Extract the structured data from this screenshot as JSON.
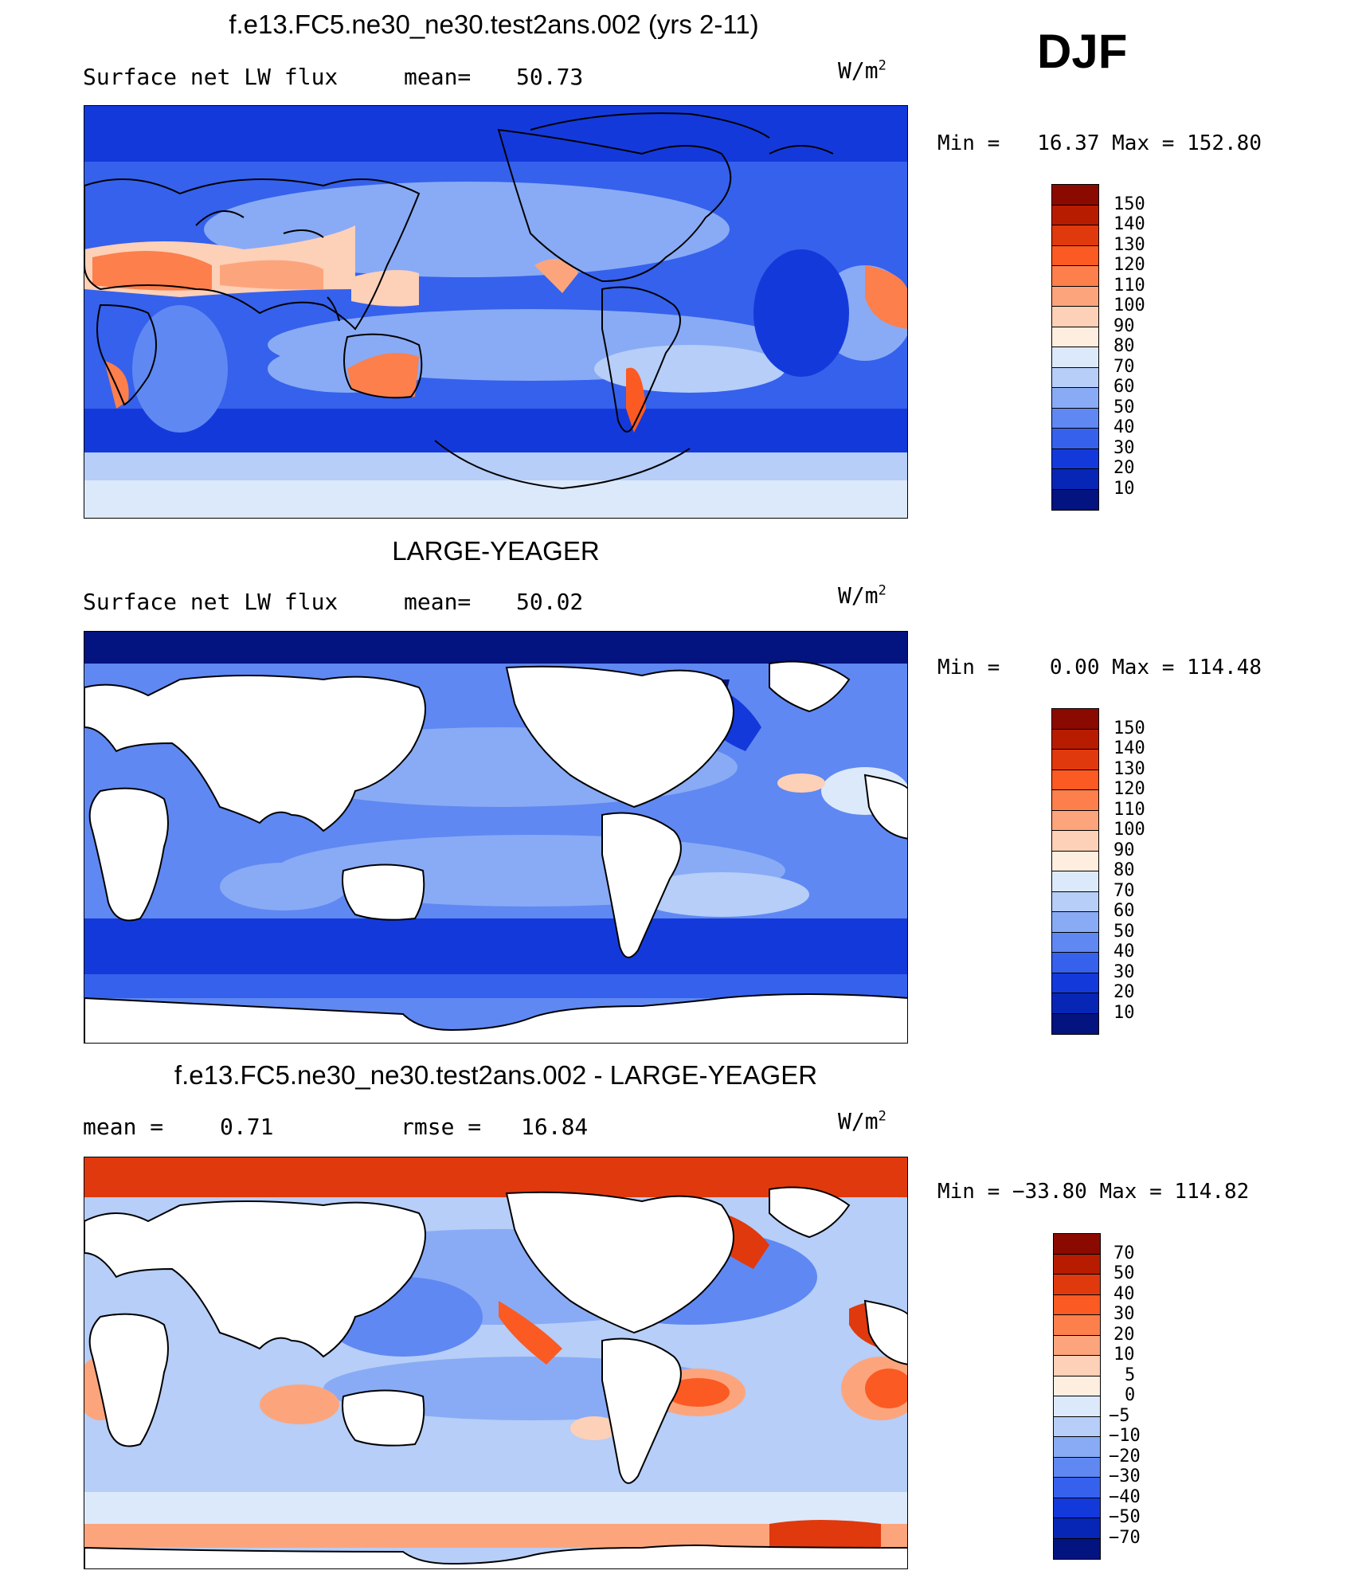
{
  "season": "DJF",
  "units_base": "W/m",
  "units_exp": "2",
  "panels": [
    {
      "title": "f.e13.FC5.ne30_ne30.test2ans.002 (yrs 2-11)",
      "left_label": "Surface net LW flux",
      "stat_label": "mean=",
      "stat_value": "50.73",
      "minmax": "Min =   16.37 Max = 152.80",
      "colorbar": {
        "labels": [
          "150",
          "140",
          "130",
          "120",
          "110",
          "100",
          "90",
          "80",
          "70",
          "60",
          "50",
          "40",
          "30",
          "20",
          "10"
        ],
        "colors": [
          "#8b0a00",
          "#b71c00",
          "#e0390d",
          "#fb5a22",
          "#fc7f4c",
          "#fca57d",
          "#fdd0b8",
          "#fdeedf",
          "#dce9fb",
          "#b6cef8",
          "#89abf5",
          "#5f88f2",
          "#3561ec",
          "#1439db",
          "#0726b6",
          "#03137f"
        ]
      }
    },
    {
      "title": "LARGE-YEAGER",
      "left_label": "Surface net LW flux",
      "stat_label": "mean=",
      "stat_value": "50.02",
      "minmax": "Min =    0.00 Max = 114.48",
      "colorbar": {
        "labels": [
          "150",
          "140",
          "130",
          "120",
          "110",
          "100",
          "90",
          "80",
          "70",
          "60",
          "50",
          "40",
          "30",
          "20",
          "10"
        ],
        "colors": [
          "#8b0a00",
          "#b71c00",
          "#e0390d",
          "#fb5a22",
          "#fc7f4c",
          "#fca57d",
          "#fdd0b8",
          "#fdeedf",
          "#dce9fb",
          "#b6cef8",
          "#89abf5",
          "#5f88f2",
          "#3561ec",
          "#1439db",
          "#0726b6",
          "#03137f"
        ]
      }
    },
    {
      "title": "f.e13.FC5.ne30_ne30.test2ans.002 - LARGE-YEAGER",
      "left_label": "mean =",
      "left_value": "0.71",
      "stat_label": "rmse =",
      "stat_value": "16.84",
      "minmax": "Min = −33.80 Max = 114.82",
      "colorbar": {
        "labels": [
          "70",
          "50",
          "40",
          "30",
          "20",
          "10",
          "5",
          "0",
          "−5",
          "−10",
          "−20",
          "−30",
          "−40",
          "−50",
          "−70"
        ],
        "colors": [
          "#8b0a00",
          "#b71c00",
          "#e0390d",
          "#fb5a22",
          "#fc7f4c",
          "#fca57d",
          "#fdd0b8",
          "#fdeedf",
          "#dce9fb",
          "#b6cef8",
          "#89abf5",
          "#5f88f2",
          "#3561ec",
          "#1439db",
          "#0726b6",
          "#03137f"
        ]
      }
    }
  ]
}
